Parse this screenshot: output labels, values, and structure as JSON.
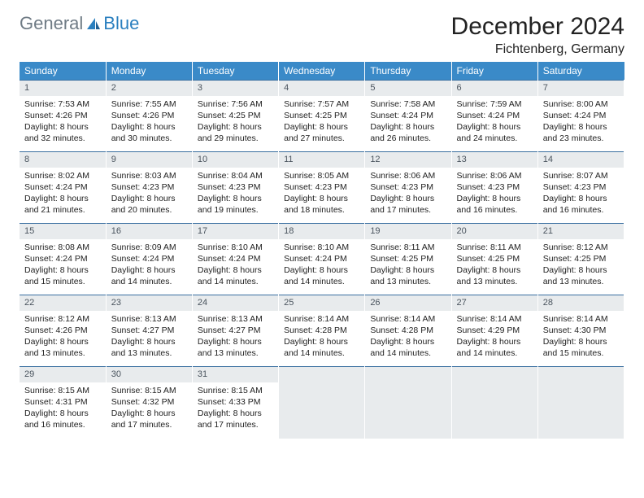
{
  "logo": {
    "general": "General",
    "blue": "Blue"
  },
  "header": {
    "title": "December 2024",
    "location": "Fichtenberg, Germany"
  },
  "colors": {
    "header_bg": "#3a8ac8",
    "header_text": "#ffffff",
    "daynum_bg": "#e8ebed",
    "row_border": "#3a6fa0",
    "logo_general": "#6f7b85",
    "logo_blue": "#2a7fbf"
  },
  "day_labels": [
    "Sunday",
    "Monday",
    "Tuesday",
    "Wednesday",
    "Thursday",
    "Friday",
    "Saturday"
  ],
  "weeks": [
    [
      {
        "n": "1",
        "sr": "7:53 AM",
        "ss": "4:26 PM",
        "dl": "8 hours and 32 minutes."
      },
      {
        "n": "2",
        "sr": "7:55 AM",
        "ss": "4:26 PM",
        "dl": "8 hours and 30 minutes."
      },
      {
        "n": "3",
        "sr": "7:56 AM",
        "ss": "4:25 PM",
        "dl": "8 hours and 29 minutes."
      },
      {
        "n": "4",
        "sr": "7:57 AM",
        "ss": "4:25 PM",
        "dl": "8 hours and 27 minutes."
      },
      {
        "n": "5",
        "sr": "7:58 AM",
        "ss": "4:24 PM",
        "dl": "8 hours and 26 minutes."
      },
      {
        "n": "6",
        "sr": "7:59 AM",
        "ss": "4:24 PM",
        "dl": "8 hours and 24 minutes."
      },
      {
        "n": "7",
        "sr": "8:00 AM",
        "ss": "4:24 PM",
        "dl": "8 hours and 23 minutes."
      }
    ],
    [
      {
        "n": "8",
        "sr": "8:02 AM",
        "ss": "4:24 PM",
        "dl": "8 hours and 21 minutes."
      },
      {
        "n": "9",
        "sr": "8:03 AM",
        "ss": "4:23 PM",
        "dl": "8 hours and 20 minutes."
      },
      {
        "n": "10",
        "sr": "8:04 AM",
        "ss": "4:23 PM",
        "dl": "8 hours and 19 minutes."
      },
      {
        "n": "11",
        "sr": "8:05 AM",
        "ss": "4:23 PM",
        "dl": "8 hours and 18 minutes."
      },
      {
        "n": "12",
        "sr": "8:06 AM",
        "ss": "4:23 PM",
        "dl": "8 hours and 17 minutes."
      },
      {
        "n": "13",
        "sr": "8:06 AM",
        "ss": "4:23 PM",
        "dl": "8 hours and 16 minutes."
      },
      {
        "n": "14",
        "sr": "8:07 AM",
        "ss": "4:23 PM",
        "dl": "8 hours and 16 minutes."
      }
    ],
    [
      {
        "n": "15",
        "sr": "8:08 AM",
        "ss": "4:24 PM",
        "dl": "8 hours and 15 minutes."
      },
      {
        "n": "16",
        "sr": "8:09 AM",
        "ss": "4:24 PM",
        "dl": "8 hours and 14 minutes."
      },
      {
        "n": "17",
        "sr": "8:10 AM",
        "ss": "4:24 PM",
        "dl": "8 hours and 14 minutes."
      },
      {
        "n": "18",
        "sr": "8:10 AM",
        "ss": "4:24 PM",
        "dl": "8 hours and 14 minutes."
      },
      {
        "n": "19",
        "sr": "8:11 AM",
        "ss": "4:25 PM",
        "dl": "8 hours and 13 minutes."
      },
      {
        "n": "20",
        "sr": "8:11 AM",
        "ss": "4:25 PM",
        "dl": "8 hours and 13 minutes."
      },
      {
        "n": "21",
        "sr": "8:12 AM",
        "ss": "4:25 PM",
        "dl": "8 hours and 13 minutes."
      }
    ],
    [
      {
        "n": "22",
        "sr": "8:12 AM",
        "ss": "4:26 PM",
        "dl": "8 hours and 13 minutes."
      },
      {
        "n": "23",
        "sr": "8:13 AM",
        "ss": "4:27 PM",
        "dl": "8 hours and 13 minutes."
      },
      {
        "n": "24",
        "sr": "8:13 AM",
        "ss": "4:27 PM",
        "dl": "8 hours and 13 minutes."
      },
      {
        "n": "25",
        "sr": "8:14 AM",
        "ss": "4:28 PM",
        "dl": "8 hours and 14 minutes."
      },
      {
        "n": "26",
        "sr": "8:14 AM",
        "ss": "4:28 PM",
        "dl": "8 hours and 14 minutes."
      },
      {
        "n": "27",
        "sr": "8:14 AM",
        "ss": "4:29 PM",
        "dl": "8 hours and 14 minutes."
      },
      {
        "n": "28",
        "sr": "8:14 AM",
        "ss": "4:30 PM",
        "dl": "8 hours and 15 minutes."
      }
    ],
    [
      {
        "n": "29",
        "sr": "8:15 AM",
        "ss": "4:31 PM",
        "dl": "8 hours and 16 minutes."
      },
      {
        "n": "30",
        "sr": "8:15 AM",
        "ss": "4:32 PM",
        "dl": "8 hours and 17 minutes."
      },
      {
        "n": "31",
        "sr": "8:15 AM",
        "ss": "4:33 PM",
        "dl": "8 hours and 17 minutes."
      },
      null,
      null,
      null,
      null
    ]
  ],
  "labels": {
    "sunrise": "Sunrise:",
    "sunset": "Sunset:",
    "daylight": "Daylight:"
  }
}
